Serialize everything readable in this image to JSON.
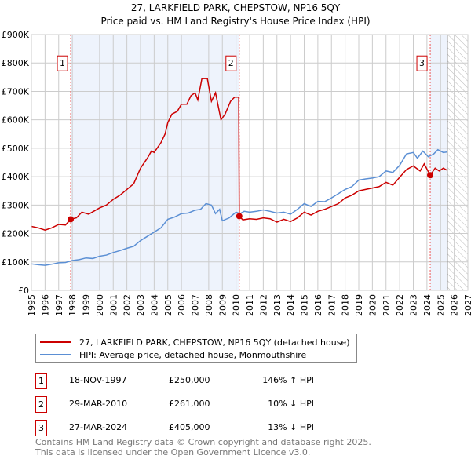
{
  "chart_data": {
    "type": "line",
    "title": "27, LARKFIELD PARK, CHEPSTOW, NP16 5QY",
    "subtitle": "Price paid vs. HM Land Registry's House Price Index (HPI)",
    "xlim": [
      1995,
      2027
    ],
    "ylim": [
      0,
      900000
    ],
    "yticks": [
      {
        "v": 0,
        "l": "£0"
      },
      {
        "v": 100000,
        "l": "£100K"
      },
      {
        "v": 200000,
        "l": "£200K"
      },
      {
        "v": 300000,
        "l": "£300K"
      },
      {
        "v": 400000,
        "l": "£400K"
      },
      {
        "v": 500000,
        "l": "£500K"
      },
      {
        "v": 600000,
        "l": "£600K"
      },
      {
        "v": 700000,
        "l": "£700K"
      },
      {
        "v": 800000,
        "l": "£800K"
      },
      {
        "v": 900000,
        "l": "£900K"
      }
    ],
    "xticks": [
      "1995",
      "1996",
      "1997",
      "1998",
      "1999",
      "2000",
      "2001",
      "2002",
      "2003",
      "2004",
      "2005",
      "2006",
      "2007",
      "2008",
      "2009",
      "2010",
      "2011",
      "2012",
      "2013",
      "2014",
      "2015",
      "2016",
      "2017",
      "2018",
      "2019",
      "2020",
      "2021",
      "2022",
      "2023",
      "2024",
      "2025",
      "2026",
      "2027"
    ],
    "shaded_ranges": [
      [
        1997.88,
        2010.24
      ],
      [
        2024.24,
        2025.5
      ]
    ],
    "forecast_from": 2025.5,
    "series": [
      {
        "name": "27, LARKFIELD PARK, CHEPSTOW, NP16 5QY (detached house)",
        "color": "#cc0000",
        "points": [
          [
            1995,
            225
          ],
          [
            1995.5,
            220
          ],
          [
            1996,
            212
          ],
          [
            1996.5,
            220
          ],
          [
            1997,
            232
          ],
          [
            1997.5,
            230
          ],
          [
            1997.88,
            250
          ],
          [
            1998.3,
            255
          ],
          [
            1998.7,
            275
          ],
          [
            1999.2,
            268
          ],
          [
            2000,
            290
          ],
          [
            2000.5,
            300
          ],
          [
            2001,
            320
          ],
          [
            2001.5,
            335
          ],
          [
            2002,
            355
          ],
          [
            2002.5,
            375
          ],
          [
            2003,
            430
          ],
          [
            2003.5,
            465
          ],
          [
            2003.8,
            490
          ],
          [
            2004,
            485
          ],
          [
            2004.5,
            520
          ],
          [
            2004.8,
            550
          ],
          [
            2005,
            590
          ],
          [
            2005.3,
            620
          ],
          [
            2005.7,
            630
          ],
          [
            2006,
            655
          ],
          [
            2006.4,
            655
          ],
          [
            2006.7,
            685
          ],
          [
            2007,
            695
          ],
          [
            2007.2,
            670
          ],
          [
            2007.5,
            745
          ],
          [
            2007.9,
            745
          ],
          [
            2008.2,
            665
          ],
          [
            2008.5,
            695
          ],
          [
            2008.9,
            600
          ],
          [
            2009.2,
            620
          ],
          [
            2009.6,
            665
          ],
          [
            2009.9,
            680
          ],
          [
            2010.2,
            680
          ],
          [
            2010.24,
            261
          ],
          [
            2010.5,
            248
          ],
          [
            2011,
            252
          ],
          [
            2011.5,
            250
          ],
          [
            2012,
            255
          ],
          [
            2012.5,
            252
          ],
          [
            2013,
            240
          ],
          [
            2013.5,
            250
          ],
          [
            2014,
            242
          ],
          [
            2014.5,
            255
          ],
          [
            2015,
            275
          ],
          [
            2015.5,
            265
          ],
          [
            2016,
            278
          ],
          [
            2016.5,
            285
          ],
          [
            2017,
            295
          ],
          [
            2017.5,
            305
          ],
          [
            2018,
            325
          ],
          [
            2018.5,
            335
          ],
          [
            2019,
            350
          ],
          [
            2019.5,
            355
          ],
          [
            2020,
            360
          ],
          [
            2020.5,
            365
          ],
          [
            2021,
            380
          ],
          [
            2021.5,
            370
          ],
          [
            2022,
            398
          ],
          [
            2022.5,
            425
          ],
          [
            2023,
            438
          ],
          [
            2023.5,
            420
          ],
          [
            2023.8,
            445
          ],
          [
            2024.24,
            405
          ],
          [
            2024.6,
            430
          ],
          [
            2024.9,
            420
          ],
          [
            2025.2,
            430
          ],
          [
            2025.5,
            422
          ]
        ]
      },
      {
        "name": "HPI: Average price, detached house, Monmouthshire",
        "color": "#5b8fd4",
        "points": [
          [
            1995,
            93
          ],
          [
            1995.5,
            90
          ],
          [
            1996,
            88
          ],
          [
            1996.5,
            92
          ],
          [
            1997,
            97
          ],
          [
            1997.5,
            98
          ],
          [
            1998,
            105
          ],
          [
            1998.5,
            108
          ],
          [
            1999,
            114
          ],
          [
            1999.5,
            112
          ],
          [
            2000,
            120
          ],
          [
            2000.5,
            124
          ],
          [
            2001,
            133
          ],
          [
            2001.5,
            140
          ],
          [
            2002,
            148
          ],
          [
            2002.5,
            155
          ],
          [
            2003,
            175
          ],
          [
            2003.5,
            190
          ],
          [
            2004,
            205
          ],
          [
            2004.5,
            220
          ],
          [
            2005,
            250
          ],
          [
            2005.5,
            258
          ],
          [
            2006,
            270
          ],
          [
            2006.5,
            272
          ],
          [
            2007,
            282
          ],
          [
            2007.4,
            285
          ],
          [
            2007.8,
            305
          ],
          [
            2008.2,
            300
          ],
          [
            2008.5,
            270
          ],
          [
            2008.8,
            285
          ],
          [
            2009,
            245
          ],
          [
            2009.5,
            255
          ],
          [
            2010,
            275
          ],
          [
            2010.3,
            270
          ],
          [
            2010.6,
            278
          ],
          [
            2011,
            275
          ],
          [
            2011.5,
            278
          ],
          [
            2012,
            283
          ],
          [
            2012.5,
            278
          ],
          [
            2013,
            272
          ],
          [
            2013.5,
            275
          ],
          [
            2014,
            268
          ],
          [
            2014.5,
            285
          ],
          [
            2015,
            305
          ],
          [
            2015.5,
            295
          ],
          [
            2016,
            313
          ],
          [
            2016.5,
            312
          ],
          [
            2017,
            325
          ],
          [
            2017.5,
            340
          ],
          [
            2018,
            355
          ],
          [
            2018.5,
            365
          ],
          [
            2019,
            388
          ],
          [
            2019.5,
            392
          ],
          [
            2020,
            395
          ],
          [
            2020.5,
            400
          ],
          [
            2021,
            420
          ],
          [
            2021.5,
            415
          ],
          [
            2022,
            440
          ],
          [
            2022.5,
            480
          ],
          [
            2023,
            485
          ],
          [
            2023.3,
            465
          ],
          [
            2023.7,
            490
          ],
          [
            2024.1,
            470
          ],
          [
            2024.5,
            480
          ],
          [
            2024.8,
            495
          ],
          [
            2025.2,
            485
          ],
          [
            2025.5,
            487
          ]
        ]
      }
    ],
    "sales": [
      {
        "n": "1",
        "x": 1997.88,
        "y": 250000
      },
      {
        "n": "2",
        "x": 2010.24,
        "y": 261000
      },
      {
        "n": "3",
        "x": 2024.24,
        "y": 405000
      }
    ]
  },
  "legend": {
    "property": "27, LARKFIELD PARK, CHEPSTOW, NP16 5QY (detached house)",
    "hpi": "HPI: Average price, detached house, Monmouthshire"
  },
  "transactions": [
    {
      "n": "1",
      "date": "18-NOV-1997",
      "price": "£250,000",
      "hpi": "146% ↑ HPI"
    },
    {
      "n": "2",
      "date": "29-MAR-2010",
      "price": "£261,000",
      "hpi": "10% ↓ HPI"
    },
    {
      "n": "3",
      "date": "27-MAR-2024",
      "price": "£405,000",
      "hpi": "13% ↓ HPI"
    }
  ],
  "footer": {
    "line1": "Contains HM Land Registry data © Crown copyright and database right 2025.",
    "line2": "This data is licensed under the Open Government Licence v3.0."
  }
}
